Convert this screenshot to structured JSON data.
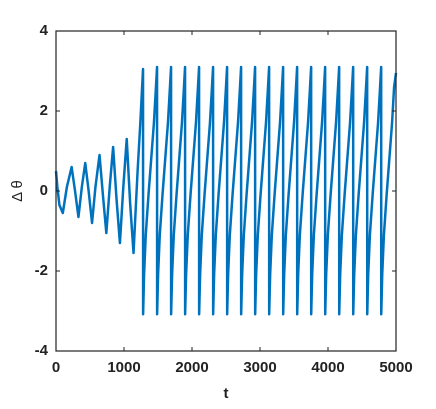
{
  "chart_data": {
    "type": "line",
    "xlabel": "t",
    "ylabel": "Δ θ",
    "color": "#0072bd",
    "xlim": [
      0,
      5000
    ],
    "ylim": [
      -4,
      4
    ],
    "xticks": [
      0,
      1000,
      2000,
      3000,
      4000,
      5000
    ],
    "yticks": [
      -4,
      -2,
      0,
      2,
      4
    ],
    "grid": false,
    "x": [
      0,
      20,
      50,
      100,
      160,
      230,
      280,
      330,
      380,
      430,
      480,
      530,
      580,
      640,
      690,
      740,
      790,
      840,
      890,
      940,
      990,
      1040,
      1090,
      1140,
      1200,
      1240,
      1280,
      1281,
      1295,
      1320,
      1360,
      1400,
      1440,
      1470,
      1486,
      1487,
      1501,
      1526,
      1566,
      1606,
      1646,
      1676,
      1692,
      1693,
      1707,
      1732,
      1772,
      1812,
      1852,
      1882,
      1898,
      1899,
      1913,
      1938,
      1978,
      2018,
      2058,
      2088,
      2104,
      2105,
      2119,
      2144,
      2184,
      2224,
      2264,
      2294,
      2310,
      2311,
      2325,
      2350,
      2390,
      2430,
      2470,
      2500,
      2516,
      2517,
      2531,
      2556,
      2596,
      2636,
      2676,
      2706,
      2722,
      2723,
      2737,
      2762,
      2802,
      2842,
      2882,
      2912,
      2928,
      2929,
      2943,
      2968,
      3008,
      3048,
      3088,
      3118,
      3134,
      3135,
      3149,
      3174,
      3214,
      3254,
      3294,
      3324,
      3340,
      3341,
      3355,
      3380,
      3420,
      3460,
      3500,
      3530,
      3546,
      3547,
      3561,
      3586,
      3626,
      3666,
      3706,
      3736,
      3752,
      3753,
      3767,
      3792,
      3832,
      3872,
      3912,
      3942,
      3958,
      3959,
      3973,
      3998,
      4038,
      4078,
      4118,
      4148,
      4164,
      4165,
      4179,
      4204,
      4244,
      4284,
      4324,
      4354,
      4370,
      4371,
      4385,
      4410,
      4450,
      4490,
      4530,
      4560,
      4576,
      4577,
      4591,
      4616,
      4656,
      4696,
      4736,
      4766,
      4782,
      4783,
      4797,
      4822,
      4862,
      4902,
      4942,
      4972,
      5000
    ],
    "values": [
      0.5,
      0.1,
      -0.35,
      -0.55,
      0.1,
      0.6,
      0.0,
      -0.65,
      0.1,
      0.7,
      0.0,
      -0.8,
      0.1,
      0.9,
      -0.1,
      -1.05,
      0.1,
      1.1,
      -0.2,
      -1.3,
      0.1,
      1.3,
      -0.3,
      -1.55,
      0.5,
      1.7,
      3.05,
      -3.08,
      -2.1,
      -1.1,
      -0.1,
      0.8,
      1.7,
      2.6,
      3.1,
      -3.08,
      -2.1,
      -1.1,
      -0.1,
      0.8,
      1.7,
      2.6,
      3.1,
      -3.08,
      -2.1,
      -1.1,
      -0.1,
      0.8,
      1.7,
      2.6,
      3.1,
      -3.08,
      -2.1,
      -1.1,
      -0.1,
      0.8,
      1.7,
      2.6,
      3.1,
      -3.08,
      -2.1,
      -1.1,
      -0.1,
      0.8,
      1.7,
      2.6,
      3.1,
      -3.08,
      -2.1,
      -1.1,
      -0.1,
      0.8,
      1.7,
      2.6,
      3.1,
      -3.08,
      -2.1,
      -1.1,
      -0.1,
      0.8,
      1.7,
      2.6,
      3.1,
      -3.08,
      -2.1,
      -1.1,
      -0.1,
      0.8,
      1.7,
      2.6,
      3.1,
      -3.08,
      -2.1,
      -1.1,
      -0.1,
      0.8,
      1.7,
      2.6,
      3.1,
      -3.08,
      -2.1,
      -1.1,
      -0.1,
      0.8,
      1.7,
      2.6,
      3.1,
      -3.08,
      -2.1,
      -1.1,
      -0.1,
      0.8,
      1.7,
      2.6,
      3.1,
      -3.08,
      -2.1,
      -1.1,
      -0.1,
      0.8,
      1.7,
      2.6,
      3.1,
      -3.08,
      -2.1,
      -1.1,
      -0.1,
      0.8,
      1.7,
      2.6,
      3.1,
      -3.08,
      -2.1,
      -1.1,
      -0.1,
      0.8,
      1.7,
      2.6,
      3.1,
      -3.08,
      -2.1,
      -1.1,
      -0.1,
      0.8,
      1.7,
      2.6,
      3.1,
      -3.08,
      -2.1,
      -1.1,
      -0.1,
      0.8,
      1.7,
      2.6,
      3.1,
      -3.08,
      -2.1,
      -1.1,
      -0.1,
      0.8,
      1.7,
      2.6,
      3.1,
      -3.08,
      -2.1,
      -1.1,
      -0.1,
      0.8,
      1.7,
      2.6,
      2.95
    ]
  }
}
